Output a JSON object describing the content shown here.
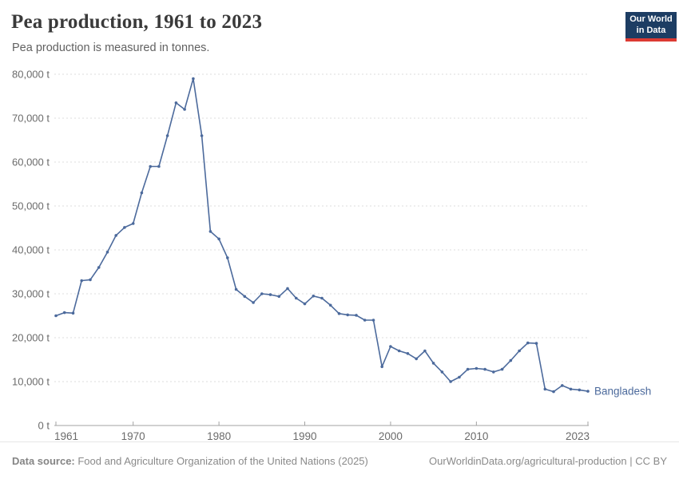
{
  "header": {
    "title": "Pea production, 1961 to 2023",
    "subtitle": "Pea production is measured in tonnes.",
    "logo": {
      "line1": "Our World",
      "line2": "in Data"
    }
  },
  "chart_data": {
    "type": "line",
    "title": "Pea production, 1961 to 2023",
    "ylabel": "",
    "xlabel": "",
    "unit": "tonnes",
    "y_suffix": " t",
    "xlim": [
      1961,
      2023
    ],
    "ylim": [
      0,
      80000
    ],
    "x_ticks": [
      1961,
      1970,
      1980,
      1990,
      2000,
      2010,
      2023
    ],
    "y_ticks": [
      0,
      10000,
      20000,
      30000,
      40000,
      50000,
      60000,
      70000,
      80000
    ],
    "grid": "horizontal-dashed",
    "legend_position": "end-of-line-label",
    "x": [
      1961,
      1962,
      1963,
      1964,
      1965,
      1966,
      1967,
      1968,
      1969,
      1970,
      1971,
      1972,
      1973,
      1974,
      1975,
      1976,
      1977,
      1978,
      1979,
      1980,
      1981,
      1982,
      1983,
      1984,
      1985,
      1986,
      1987,
      1988,
      1989,
      1990,
      1991,
      1992,
      1993,
      1994,
      1995,
      1996,
      1997,
      1998,
      1999,
      2000,
      2001,
      2002,
      2003,
      2004,
      2005,
      2006,
      2007,
      2008,
      2009,
      2010,
      2011,
      2012,
      2013,
      2014,
      2015,
      2016,
      2017,
      2018,
      2019,
      2020,
      2021,
      2022,
      2023
    ],
    "series": [
      {
        "name": "Bangladesh",
        "color": "#4C6A9C",
        "values": [
          25000,
          25700,
          25600,
          33000,
          33200,
          36000,
          39500,
          43300,
          45100,
          46000,
          53000,
          59000,
          59000,
          66000,
          73500,
          72000,
          79000,
          66000,
          44200,
          42500,
          38200,
          31000,
          29400,
          28000,
          30000,
          29800,
          29400,
          31200,
          29000,
          27700,
          29500,
          29000,
          27400,
          25500,
          25200,
          25100,
          24000,
          24000,
          13400,
          18000,
          17000,
          16400,
          15200,
          17000,
          14200,
          12200,
          10000,
          11000,
          12800,
          13000,
          12800,
          12200,
          12800,
          14800,
          17000,
          18800,
          18700,
          8300,
          7700,
          9100,
          8300,
          8100,
          7800
        ]
      }
    ],
    "colors": {
      "line": "#4C6A9C",
      "grid": "#dcdcdc",
      "axis": "#a3a3a3",
      "tick_text": "#6b6b6b"
    }
  },
  "footer": {
    "datasource_label": "Data source:",
    "datasource_text": " Food and Agriculture Organization of the United Nations (2025)",
    "link": "OurWorldinData.org/agricultural-production",
    "separator": " | ",
    "license": "CC BY"
  }
}
